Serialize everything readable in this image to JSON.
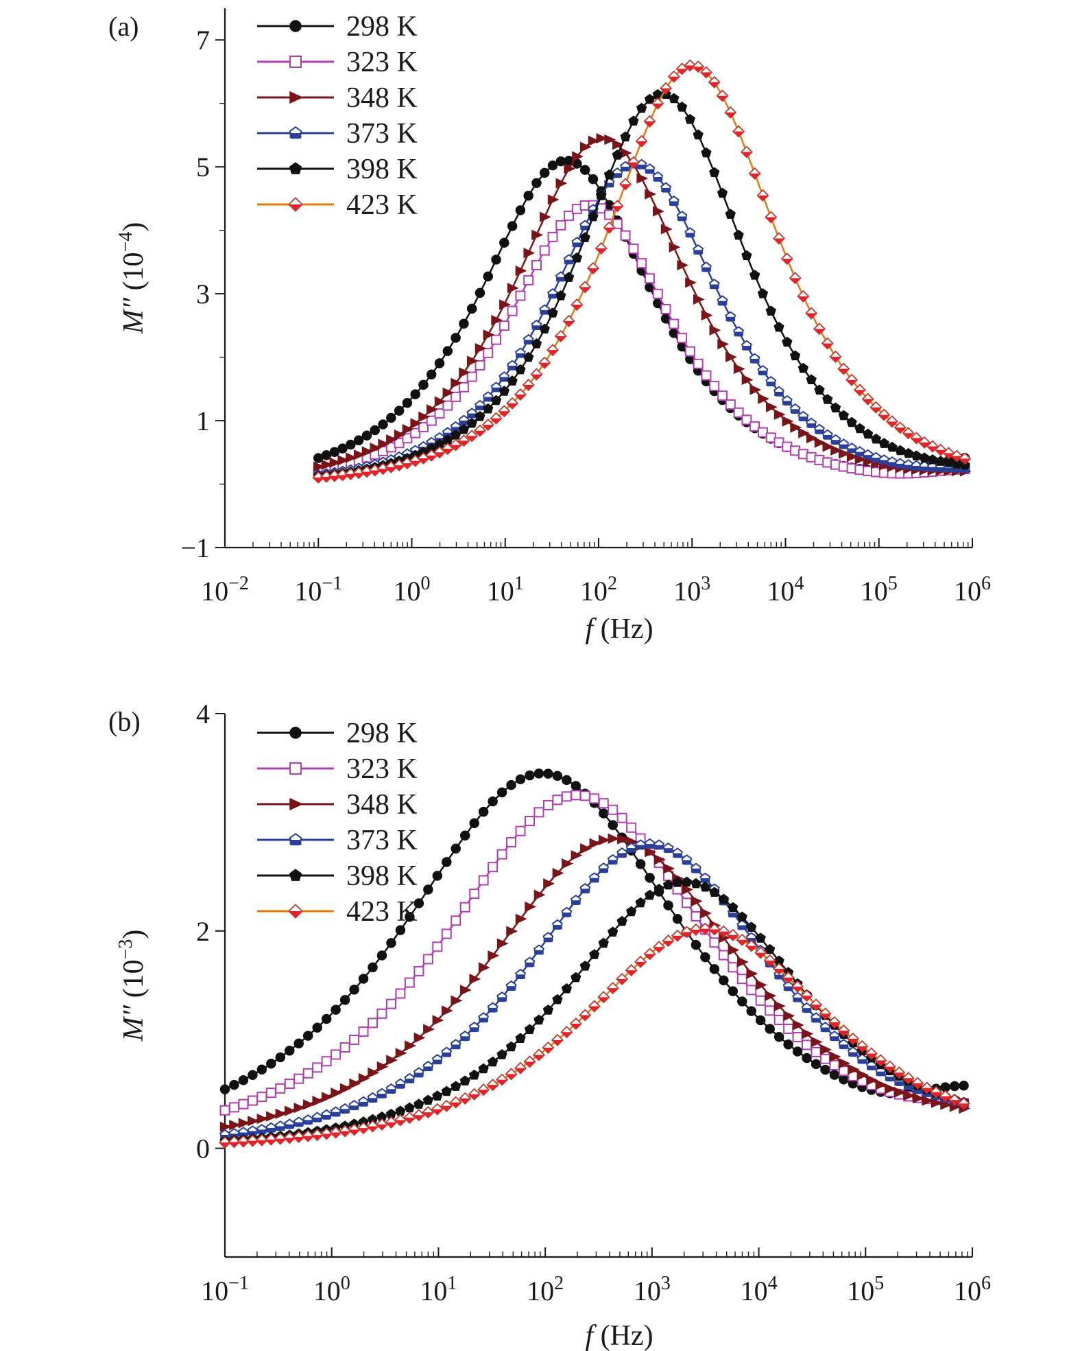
{
  "chart_data": [
    {
      "type": "line",
      "panel_label": "(a)",
      "xlabel_var": "f",
      "xlabel_unit": " (Hz)",
      "ylabel_var": "M″",
      "ylabel_unit": " (10",
      "ylabel_exp": "−4",
      "ylabel_close": ")",
      "xscale": "log",
      "xlim": [
        0.01,
        1000000
      ],
      "ylim": [
        -1,
        7.5
      ],
      "xticks": [
        {
          "base": "10",
          "exp": "−2"
        },
        {
          "base": "10",
          "exp": "−1"
        },
        {
          "base": "10",
          "exp": "0"
        },
        {
          "base": "10",
          "exp": "1"
        },
        {
          "base": "10",
          "exp": "2"
        },
        {
          "base": "10",
          "exp": "3"
        },
        {
          "base": "10",
          "exp": "4"
        },
        {
          "base": "10",
          "exp": "5"
        },
        {
          "base": "10",
          "exp": "6"
        }
      ],
      "yticks": [
        {
          "value": -1,
          "label": "−1"
        },
        {
          "value": 1,
          "label": "1"
        },
        {
          "value": 3,
          "label": "3"
        },
        {
          "value": 5,
          "label": "5"
        },
        {
          "value": 7,
          "label": "7"
        }
      ],
      "grid": false,
      "legend_position": "top-left",
      "series": [
        {
          "name": "298 K",
          "color": "#111111",
          "marker": "filled-circle",
          "peak_x": 45,
          "peak_y": 5.1,
          "width": 0.95,
          "baseline": 0.0,
          "tail": 0.42
        },
        {
          "name": "323 K",
          "color": "#b23cb2",
          "marker": "open-square",
          "peak_x": 80,
          "peak_y": 4.4,
          "width": 0.9,
          "baseline": 0.0,
          "tail": 0.22
        },
        {
          "name": "348 K",
          "color": "#7a1418",
          "marker": "right-triangle",
          "peak_x": 110,
          "peak_y": 5.45,
          "width": 0.95,
          "baseline": 0.0,
          "tail": 0.12
        },
        {
          "name": "373 K",
          "color": "#2a3f9a",
          "marker": "half-pentagon",
          "peak_x": 250,
          "peak_y": 5.05,
          "width": 0.92,
          "baseline": 0.0,
          "tail": 0.15
        },
        {
          "name": "398 K",
          "color": "#111111",
          "marker": "filled-pentagon",
          "peak_x": 480,
          "peak_y": 6.15,
          "width": 0.92,
          "baseline": 0.0,
          "tail": 0.1
        },
        {
          "name": "423 K",
          "color": "#e07a10",
          "marker": "half-diamond",
          "peak_x": 1000,
          "peak_y": 6.6,
          "width": 0.95,
          "baseline": 0.0,
          "tail": 0.02
        }
      ]
    },
    {
      "type": "line",
      "panel_label": "(b)",
      "xlabel_var": "f",
      "xlabel_unit": " (Hz)",
      "ylabel_var": "M″",
      "ylabel_unit": " (10",
      "ylabel_exp": "−3",
      "ylabel_close": ")",
      "xscale": "log",
      "xlim": [
        0.1,
        1000000
      ],
      "ylim": [
        -1,
        4
      ],
      "xticks": [
        {
          "base": "10",
          "exp": "−1"
        },
        {
          "base": "10",
          "exp": "0"
        },
        {
          "base": "10",
          "exp": "1"
        },
        {
          "base": "10",
          "exp": "2"
        },
        {
          "base": "10",
          "exp": "3"
        },
        {
          "base": "10",
          "exp": "4"
        },
        {
          "base": "10",
          "exp": "5"
        },
        {
          "base": "10",
          "exp": "6"
        }
      ],
      "yticks": [
        {
          "value": 0,
          "label": "0"
        },
        {
          "value": 2,
          "label": "2"
        },
        {
          "value": 4,
          "label": "4"
        }
      ],
      "grid": false,
      "legend_position": "top-left",
      "series": [
        {
          "name": "298 K",
          "color": "#111111",
          "marker": "filled-circle",
          "peak_x": 95,
          "peak_y": 3.45,
          "width": 1.35,
          "baseline": 0.0,
          "tail": 0.4
        },
        {
          "name": "323 K",
          "color": "#b23cb2",
          "marker": "open-square",
          "peak_x": 200,
          "peak_y": 3.25,
          "width": 1.3,
          "baseline": 0.0,
          "tail": 0.18
        },
        {
          "name": "348 K",
          "color": "#7a1418",
          "marker": "right-triangle",
          "peak_x": 450,
          "peak_y": 2.85,
          "width": 1.25,
          "baseline": 0.0,
          "tail": 0.1
        },
        {
          "name": "373 K",
          "color": "#2a3f9a",
          "marker": "half-pentagon",
          "peak_x": 950,
          "peak_y": 2.8,
          "width": 1.2,
          "baseline": 0.0,
          "tail": 0.1
        },
        {
          "name": "398 K",
          "color": "#111111",
          "marker": "filled-pentagon",
          "peak_x": 2000,
          "peak_y": 2.45,
          "width": 1.15,
          "baseline": 0.0,
          "tail": 0.08
        },
        {
          "name": "423 K",
          "color": "#e07a10",
          "marker": "half-diamond",
          "peak_x": 3200,
          "peak_y": 2.02,
          "width": 1.2,
          "baseline": 0.0,
          "tail": 0.02
        }
      ]
    }
  ]
}
